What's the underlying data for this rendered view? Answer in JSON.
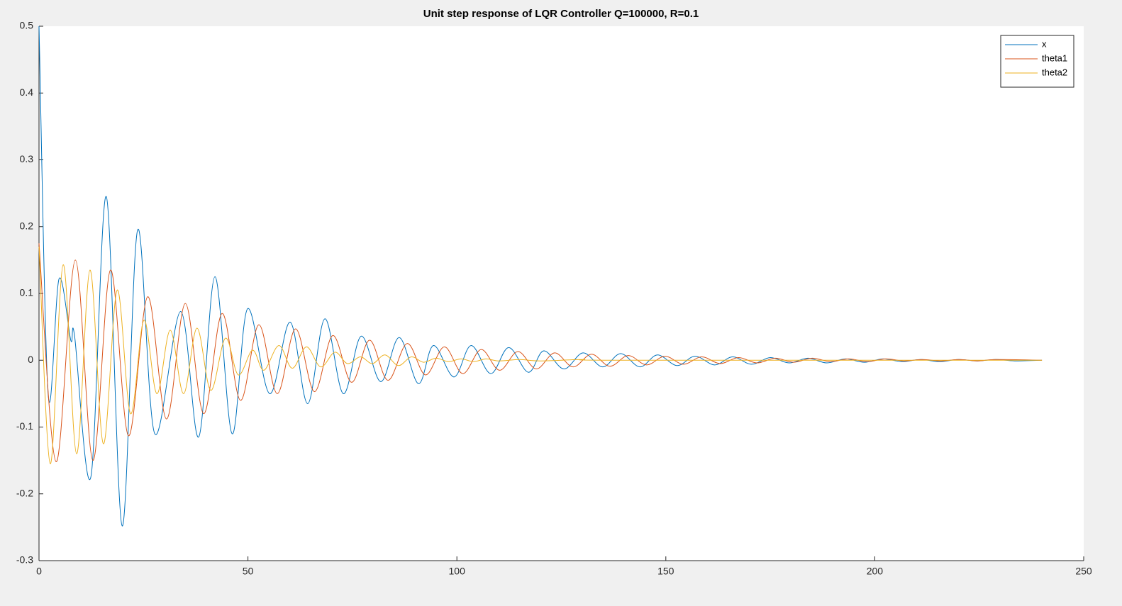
{
  "chart_data": {
    "type": "line",
    "title": "Unit step response of LQR Controller Q=100000, R=0.1",
    "xlim": [
      0,
      250
    ],
    "xticks": [
      0,
      50,
      100,
      150,
      200,
      250
    ],
    "ylim": [
      -0.3,
      0.5
    ],
    "yticks": [
      -0.3,
      -0.2,
      -0.1,
      0,
      0.1,
      0.2,
      0.3,
      0.4,
      0.5
    ],
    "grid": false,
    "legend": "top-right",
    "series": [
      {
        "name": "x",
        "color": "#0072bd",
        "x": [
          0,
          2.2,
          4.8,
          7.6,
          8.5,
          12.4,
          16.1,
          19.9,
          23.6,
          27.7,
          33.9,
          38.2,
          42.1,
          46.2,
          49.9,
          55.2,
          60.1,
          64.3,
          68.4,
          72.8,
          77.1,
          81.8,
          86.2,
          90.8,
          94.4,
          99.3,
          103.4,
          108.1,
          112.4,
          117.1,
          120.8,
          125.6,
          130.2,
          134.9,
          139.2,
          143.8,
          148.0,
          152.7,
          157.0,
          161.7,
          166,
          170.5,
          175,
          179.5,
          184,
          188.5,
          193,
          197.5,
          202,
          206.5,
          211,
          215.5,
          220,
          224.5,
          229,
          233.5,
          240
        ],
        "values": [
          0.5,
          -0.052,
          0.122,
          0.03,
          0.037,
          -0.175,
          0.245,
          -0.248,
          0.195,
          -0.11,
          0.073,
          -0.115,
          0.125,
          -0.11,
          0.077,
          -0.05,
          0.057,
          -0.065,
          0.062,
          -0.05,
          0.036,
          -0.032,
          0.034,
          -0.035,
          0.022,
          -0.025,
          0.022,
          -0.02,
          0.019,
          -0.018,
          0.014,
          -0.013,
          0.011,
          -0.01,
          0.01,
          -0.01,
          0.008,
          -0.008,
          0.006,
          -0.007,
          0.005,
          -0.006,
          0.004,
          -0.004,
          0.003,
          -0.004,
          0.002,
          -0.003,
          0.002,
          -0.002,
          0.001,
          -0.002,
          0.001,
          -0.001,
          0.001,
          -0.001,
          0
        ]
      },
      {
        "name": "theta1",
        "color": "#d95319",
        "x": [
          0,
          4.1,
          8.7,
          12.9,
          17.1,
          21.4,
          26.0,
          30.5,
          35.0,
          39.4,
          43.8,
          48.2,
          52.6,
          57.0,
          61.4,
          65.9,
          70.3,
          74.8,
          79.1,
          83.5,
          88.1,
          92.5,
          97,
          101.4,
          105.8,
          110.2,
          114.6,
          119,
          123.4,
          127.8,
          132.2,
          136.6,
          141,
          145.4,
          149.8,
          154.2,
          158.6,
          163,
          167.4,
          171.8,
          176.2,
          180.6,
          185,
          189.4,
          193.8,
          198.2,
          202.6,
          207,
          211.4,
          215.8,
          220.2,
          224.6,
          229,
          240
        ],
        "values": [
          0.175,
          -0.152,
          0.15,
          -0.15,
          0.135,
          -0.113,
          0.095,
          -0.088,
          0.085,
          -0.08,
          0.07,
          -0.06,
          0.053,
          -0.05,
          0.047,
          -0.047,
          0.037,
          -0.033,
          0.03,
          -0.03,
          0.025,
          -0.022,
          0.02,
          -0.02,
          0.016,
          -0.015,
          0.013,
          -0.013,
          0.011,
          -0.01,
          0.009,
          -0.009,
          0.007,
          -0.007,
          0.006,
          -0.006,
          0.005,
          -0.005,
          0.004,
          -0.004,
          0.003,
          -0.003,
          0.003,
          -0.002,
          0.002,
          -0.002,
          0.002,
          -0.001,
          0.001,
          -0.001,
          0.001,
          -0.001,
          0.001,
          0
        ]
      },
      {
        "name": "theta2",
        "color": "#edb120",
        "x": [
          0,
          2.7,
          5.8,
          9.0,
          12.2,
          15.4,
          18.7,
          21.9,
          25.1,
          28.2,
          31.4,
          34.6,
          37.8,
          41.1,
          44.6,
          47.7,
          51.1,
          53.8,
          57.4,
          60.6,
          64.0,
          67.4,
          70.8,
          73.8,
          76.9,
          79.8,
          82.8,
          86.0,
          89.1,
          92,
          95,
          98,
          101,
          104,
          107,
          110,
          115,
          120,
          130,
          140,
          240
        ],
        "values": [
          0.17,
          -0.155,
          0.143,
          -0.14,
          0.135,
          -0.125,
          0.105,
          -0.08,
          0.06,
          -0.05,
          0.045,
          -0.05,
          0.048,
          -0.045,
          0.033,
          -0.022,
          0.015,
          -0.015,
          0.022,
          -0.012,
          0.02,
          -0.01,
          0.012,
          -0.005,
          0.005,
          -0.005,
          0.008,
          -0.008,
          0.005,
          -0.003,
          0.003,
          -0.002,
          0.002,
          -0.002,
          0.002,
          -0.001,
          0.001,
          -0.001,
          0.001,
          0,
          0
        ]
      }
    ]
  }
}
